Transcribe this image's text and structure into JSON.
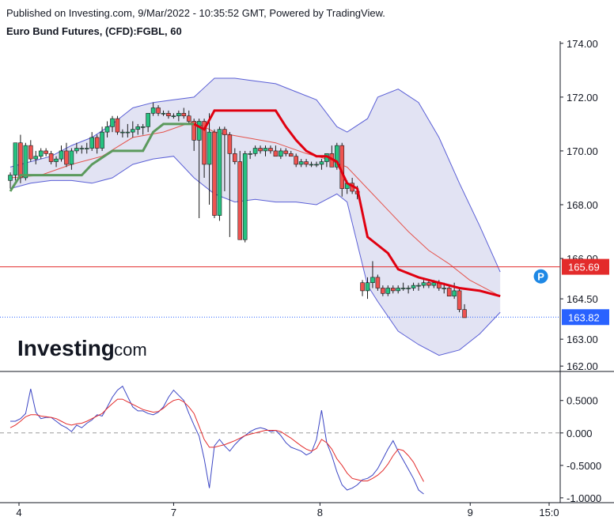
{
  "header": {
    "published": "Published on Investing.com, 9/Mar/2022 - 10:35:52 GMT, Powered by TradingView.",
    "title": "Euro Bund Futures, (CFD):FGBL, 60"
  },
  "logo": {
    "brand": "Investing",
    "suffix": ".com"
  },
  "chart_data": [
    {
      "type": "candlestick",
      "title": "Euro Bund Futures, (CFD):FGBL, 60",
      "ylim": [
        161.8,
        174.2
      ],
      "y_ticks": [
        "174.00",
        "172.00",
        "170.00",
        "168.00",
        "166.00",
        "164.50",
        "163.00",
        "162.00"
      ],
      "y_tick_values": [
        174,
        172,
        170,
        168,
        166,
        164.5,
        163,
        162
      ],
      "x_ticks": [
        {
          "label": "4",
          "pos": 0
        },
        {
          "label": "7",
          "pos": 28
        },
        {
          "label": "8",
          "pos": 54.5
        },
        {
          "label": "9",
          "pos": 81.7
        },
        {
          "label": "15:0",
          "pos": 100
        }
      ],
      "price_lines": [
        {
          "label": "165.69",
          "value": 165.69,
          "color": "#e32b2b",
          "style": "solid"
        },
        {
          "label": "163.82",
          "value": 163.82,
          "color": "#2962ff",
          "style": "dotted"
        }
      ],
      "marker": {
        "label": "P",
        "x": 96.5,
        "y": 165.1,
        "color": "#1e88e5"
      },
      "candles": [
        [
          168.9,
          169.2,
          168.6,
          169.1
        ],
        [
          169.1,
          170.3,
          168.9,
          170.3
        ],
        [
          170.3,
          170.6,
          168.8,
          169.0
        ],
        [
          169.0,
          170.3,
          168.9,
          170.2
        ],
        [
          170.2,
          170.4,
          169.6,
          169.7
        ],
        [
          169.7,
          170.0,
          169.5,
          169.8
        ],
        [
          169.8,
          170.1,
          169.7,
          170.0
        ],
        [
          170.0,
          170.1,
          169.8,
          169.9
        ],
        [
          169.9,
          170.0,
          169.5,
          169.6
        ],
        [
          169.6,
          169.8,
          169.4,
          169.7
        ],
        [
          169.7,
          170.2,
          169.6,
          170.0
        ],
        [
          170.0,
          170.3,
          169.4,
          169.5
        ],
        [
          169.5,
          170.1,
          169.3,
          170.0
        ],
        [
          170.0,
          170.3,
          169.9,
          170.1
        ],
        [
          170.1,
          170.2,
          169.9,
          170.1
        ],
        [
          170.1,
          170.3,
          169.9,
          170.1
        ],
        [
          170.1,
          170.7,
          170.0,
          170.5
        ],
        [
          170.5,
          170.6,
          169.9,
          170.1
        ],
        [
          170.1,
          170.9,
          170.0,
          170.7
        ],
        [
          170.7,
          171.1,
          170.5,
          170.9
        ],
        [
          170.9,
          171.3,
          170.7,
          171.2
        ],
        [
          171.2,
          171.3,
          170.6,
          170.7
        ],
        [
          170.7,
          170.8,
          170.5,
          170.7
        ],
        [
          170.7,
          171.0,
          170.5,
          170.7
        ],
        [
          170.7,
          171.1,
          170.5,
          170.8
        ],
        [
          170.8,
          171.0,
          170.6,
          170.9
        ],
        [
          170.9,
          171.0,
          170.6,
          170.9
        ],
        [
          170.9,
          171.4,
          170.7,
          171.4
        ],
        [
          171.4,
          171.8,
          171.3,
          171.6
        ],
        [
          171.6,
          171.7,
          171.3,
          171.4
        ],
        [
          171.4,
          171.5,
          171.3,
          171.4
        ],
        [
          171.4,
          171.5,
          171.2,
          171.3
        ],
        [
          171.3,
          171.4,
          171.2,
          171.3
        ],
        [
          171.3,
          171.5,
          171.1,
          171.4
        ],
        [
          171.4,
          171.6,
          171.2,
          171.3
        ],
        [
          171.3,
          171.5,
          171.0,
          171.1
        ],
        [
          171.1,
          171.2,
          170.0,
          170.4
        ],
        [
          170.4,
          171.2,
          167.5,
          171.1
        ],
        [
          171.1,
          171.2,
          169.0,
          169.5
        ],
        [
          169.5,
          171.4,
          168.0,
          170.7
        ],
        [
          170.7,
          170.8,
          167.5,
          167.6
        ],
        [
          167.6,
          170.9,
          167.4,
          170.8
        ],
        [
          170.8,
          170.9,
          168.5,
          170.6
        ],
        [
          170.6,
          170.7,
          166.8,
          169.9
        ],
        [
          169.9,
          170.1,
          169.5,
          169.6
        ],
        [
          169.6,
          170.0,
          166.7,
          166.7
        ],
        [
          166.7,
          170.0,
          166.6,
          169.9
        ],
        [
          169.9,
          170.0,
          169.7,
          169.9
        ],
        [
          169.9,
          170.2,
          169.8,
          170.1
        ],
        [
          170.1,
          170.2,
          169.9,
          170.0
        ],
        [
          170.0,
          170.2,
          169.8,
          170.1
        ],
        [
          170.1,
          170.2,
          169.9,
          170.0
        ],
        [
          170.0,
          170.2,
          169.8,
          169.8
        ],
        [
          169.8,
          170.1,
          169.7,
          170.0
        ],
        [
          170.0,
          170.1,
          169.8,
          169.9
        ],
        [
          169.9,
          170.0,
          169.8,
          169.8
        ],
        [
          169.8,
          169.9,
          169.4,
          169.5
        ],
        [
          169.5,
          169.7,
          169.4,
          169.6
        ],
        [
          169.6,
          169.7,
          169.4,
          169.5
        ],
        [
          169.5,
          169.6,
          169.4,
          169.5
        ],
        [
          169.5,
          169.6,
          169.4,
          169.5
        ],
        [
          169.5,
          169.7,
          169.3,
          169.6
        ],
        [
          169.6,
          169.9,
          169.4,
          169.9
        ],
        [
          169.9,
          170.2,
          169.4,
          169.4
        ],
        [
          169.4,
          170.3,
          169.3,
          170.2
        ],
        [
          170.2,
          170.3,
          168.3,
          168.6
        ],
        [
          168.6,
          168.9,
          168.4,
          168.8
        ],
        [
          168.8,
          169.0,
          168.4,
          168.5
        ],
        [
          168.5,
          168.7,
          168.2,
          168.4
        ],
        [
          165.1,
          165.2,
          164.6,
          164.8
        ],
        [
          164.8,
          165.3,
          164.5,
          165.1
        ],
        [
          165.1,
          165.9,
          164.9,
          165.3
        ],
        [
          165.3,
          165.4,
          164.8,
          164.9
        ],
        [
          164.9,
          165.0,
          164.6,
          164.7
        ],
        [
          164.7,
          165.0,
          164.6,
          164.9
        ],
        [
          164.9,
          165.0,
          164.7,
          164.8
        ],
        [
          164.8,
          165.0,
          164.7,
          164.9
        ],
        [
          164.9,
          165.1,
          164.8,
          164.9
        ],
        [
          164.9,
          165.0,
          164.7,
          164.9
        ],
        [
          164.9,
          165.1,
          164.8,
          165.0
        ],
        [
          165.0,
          165.1,
          164.8,
          165.0
        ],
        [
          165.0,
          165.2,
          164.9,
          165.1
        ],
        [
          165.1,
          165.2,
          164.9,
          165.0
        ],
        [
          165.0,
          165.2,
          164.9,
          165.1
        ],
        [
          165.1,
          165.2,
          164.8,
          164.9
        ],
        [
          164.9,
          165.1,
          164.7,
          164.9
        ],
        [
          164.9,
          165.0,
          164.6,
          164.6
        ],
        [
          164.6,
          165.1,
          164.5,
          164.8
        ],
        [
          164.8,
          164.9,
          164.0,
          164.1
        ],
        [
          164.1,
          164.3,
          163.8,
          163.8
        ]
      ],
      "indicators": {
        "bollinger_upper": [
          [
            0,
            169.4
          ],
          [
            4,
            169.6
          ],
          [
            8,
            169.8
          ],
          [
            12,
            170.2
          ],
          [
            16,
            170.5
          ],
          [
            20,
            171.0
          ],
          [
            24,
            171.6
          ],
          [
            28,
            171.8
          ],
          [
            32,
            171.9
          ],
          [
            36,
            172.0
          ],
          [
            40,
            172.7
          ],
          [
            44,
            172.7
          ],
          [
            48,
            172.6
          ],
          [
            52,
            172.5
          ],
          [
            56,
            172.2
          ],
          [
            60,
            171.9
          ],
          [
            64,
            170.9
          ],
          [
            66,
            170.7
          ],
          [
            70,
            171.2
          ],
          [
            72,
            172.0
          ],
          [
            76,
            172.3
          ],
          [
            80,
            171.8
          ],
          [
            84,
            170.5
          ],
          [
            88,
            168.8
          ],
          [
            92,
            167.2
          ],
          [
            96,
            165.5
          ]
        ],
        "bollinger_lower": [
          [
            0,
            168.6
          ],
          [
            4,
            168.8
          ],
          [
            8,
            168.9
          ],
          [
            12,
            168.9
          ],
          [
            16,
            168.8
          ],
          [
            20,
            169.0
          ],
          [
            24,
            169.5
          ],
          [
            28,
            169.7
          ],
          [
            32,
            169.8
          ],
          [
            36,
            169.0
          ],
          [
            40,
            168.4
          ],
          [
            44,
            168.1
          ],
          [
            48,
            168.2
          ],
          [
            52,
            168.1
          ],
          [
            56,
            168.1
          ],
          [
            60,
            168.0
          ],
          [
            64,
            168.4
          ],
          [
            66,
            168.1
          ],
          [
            70,
            165.0
          ],
          [
            72,
            164.4
          ],
          [
            76,
            163.3
          ],
          [
            80,
            162.8
          ],
          [
            84,
            162.4
          ],
          [
            88,
            162.6
          ],
          [
            92,
            163.2
          ],
          [
            96,
            164.0
          ]
        ],
        "bollinger_basis": [
          [
            0,
            169.0
          ],
          [
            6,
            169.1
          ],
          [
            12,
            169.5
          ],
          [
            18,
            169.8
          ],
          [
            24,
            170.5
          ],
          [
            30,
            170.7
          ],
          [
            36,
            171.1
          ],
          [
            40,
            170.7
          ],
          [
            46,
            170.5
          ],
          [
            52,
            170.3
          ],
          [
            58,
            169.9
          ],
          [
            62,
            169.7
          ],
          [
            66,
            169.4
          ],
          [
            70,
            168.6
          ],
          [
            74,
            167.8
          ],
          [
            78,
            167.0
          ],
          [
            82,
            166.3
          ],
          [
            86,
            165.8
          ],
          [
            90,
            165.2
          ],
          [
            96,
            164.6
          ]
        ],
        "red_stop_line": [
          [
            36,
            171.0
          ],
          [
            38,
            170.8
          ],
          [
            40,
            171.5
          ],
          [
            50,
            171.5
          ],
          [
            52,
            171.5
          ],
          [
            54,
            170.9
          ],
          [
            56,
            170.4
          ],
          [
            58,
            170.0
          ],
          [
            60,
            169.8
          ],
          [
            62,
            169.8
          ],
          [
            64,
            169.6
          ],
          [
            66,
            168.8
          ],
          [
            68,
            168.6
          ],
          [
            70,
            166.8
          ],
          [
            72,
            166.5
          ],
          [
            74,
            166.2
          ],
          [
            76,
            165.6
          ],
          [
            80,
            165.3
          ],
          [
            84,
            165.1
          ],
          [
            88,
            164.9
          ],
          [
            92,
            164.8
          ],
          [
            96,
            164.6
          ]
        ],
        "green_line": [
          [
            0,
            168.5
          ],
          [
            2,
            169.1
          ],
          [
            6,
            169.1
          ],
          [
            10,
            169.1
          ],
          [
            14,
            169.1
          ],
          [
            16,
            169.5
          ],
          [
            20,
            170.0
          ],
          [
            24,
            170.0
          ],
          [
            26,
            170.0
          ],
          [
            28,
            170.7
          ],
          [
            30,
            171.0
          ],
          [
            32,
            171.0
          ],
          [
            36,
            171.0
          ]
        ]
      }
    },
    {
      "type": "line",
      "ylim": [
        -1.05,
        0.85
      ],
      "y_ticks": [
        "0.5000",
        "0.000",
        "-0.5000",
        "-1.0000"
      ],
      "y_tick_values": [
        0.5,
        0,
        -0.5,
        -1.0
      ],
      "zero_line": 0,
      "series": [
        {
          "color": "#3b45c4",
          "values": [
            0.18,
            0.18,
            0.22,
            0.3,
            0.68,
            0.32,
            0.22,
            0.24,
            0.24,
            0.18,
            0.12,
            0.08,
            0.02,
            0.12,
            0.08,
            0.15,
            0.2,
            0.28,
            0.26,
            0.4,
            0.55,
            0.66,
            0.72,
            0.56,
            0.4,
            0.34,
            0.34,
            0.3,
            0.28,
            0.32,
            0.4,
            0.55,
            0.66,
            0.58,
            0.5,
            0.3,
            0.12,
            -0.05,
            -0.4,
            -0.85,
            -0.2,
            -0.1,
            -0.2,
            -0.28,
            -0.18,
            -0.1,
            -0.04,
            0.02,
            0.06,
            0.08,
            0.06,
            0.02,
            0.04,
            -0.04,
            -0.15,
            -0.22,
            -0.25,
            -0.28,
            -0.34,
            -0.3,
            -0.1,
            0.35,
            -0.15,
            -0.35,
            -0.6,
            -0.8,
            -0.88,
            -0.85,
            -0.8,
            -0.72,
            -0.7,
            -0.65,
            -0.55,
            -0.4,
            -0.25,
            -0.12,
            -0.28,
            -0.42,
            -0.56,
            -0.7,
            -0.88,
            -0.94
          ]
        },
        {
          "color": "#e32b2b",
          "values": [
            0.08,
            0.12,
            0.18,
            0.25,
            0.28,
            0.28,
            0.26,
            0.25,
            0.24,
            0.22,
            0.18,
            0.14,
            0.12,
            0.14,
            0.15,
            0.18,
            0.22,
            0.26,
            0.3,
            0.38,
            0.45,
            0.52,
            0.52,
            0.48,
            0.44,
            0.4,
            0.36,
            0.34,
            0.32,
            0.33,
            0.38,
            0.45,
            0.5,
            0.52,
            0.48,
            0.4,
            0.3,
            0.1,
            -0.1,
            -0.22,
            -0.22,
            -0.2,
            -0.18,
            -0.15,
            -0.12,
            -0.08,
            -0.04,
            -0.02,
            0.0,
            0.02,
            0.04,
            0.04,
            0.04,
            0.02,
            -0.03,
            -0.08,
            -0.14,
            -0.2,
            -0.25,
            -0.28,
            -0.24,
            -0.1,
            -0.15,
            -0.25,
            -0.4,
            -0.5,
            -0.62,
            -0.7,
            -0.72,
            -0.74,
            -0.74,
            -0.7,
            -0.65,
            -0.58,
            -0.48,
            -0.35,
            -0.25,
            -0.27,
            -0.35,
            -0.45,
            -0.6,
            -0.75
          ]
        }
      ]
    }
  ]
}
